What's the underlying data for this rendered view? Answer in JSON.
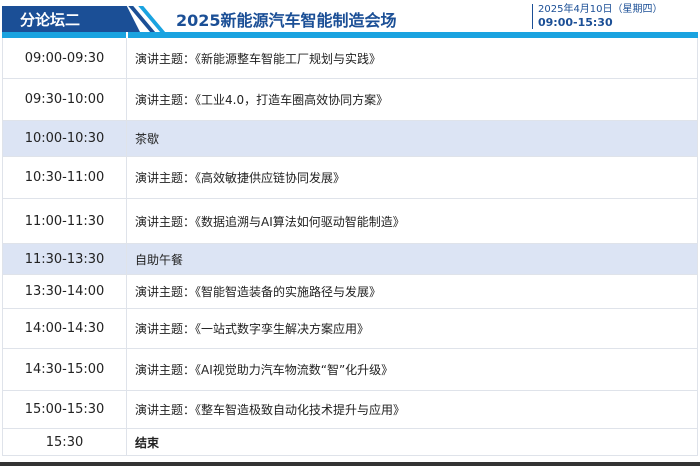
{
  "header": {
    "forum": "分论坛二",
    "title": "2025新能源汽车智能制造会场",
    "date": "2025年4月10日（星期四）",
    "time": "09:00-15:30",
    "colors": {
      "primary": "#1b4f96",
      "accent": "#1aa3e0",
      "highlight": "#dce4f4"
    }
  },
  "rows": [
    {
      "time": "09:00-09:30",
      "content": "演讲主题：《新能源整车智能工厂规划与实践》"
    },
    {
      "time": "09:30-10:00",
      "content": "演讲主题：《工业4.0，打造车圈高效协同方案》"
    },
    {
      "time": "10:00-10:30",
      "content": "茶歇"
    },
    {
      "time": "10:30-11:00",
      "content": "演讲主题：《高效敏捷供应链协同发展》"
    },
    {
      "time": "11:00-11:30",
      "content": "演讲主题：《数据追溯与AI算法如何驱动智能制造》"
    },
    {
      "time": "11:30-13:30",
      "content": "自助午餐"
    },
    {
      "time": "13:30-14:00",
      "content": "演讲主题：《智能智造装备的实施路径与发展》"
    },
    {
      "time": "14:00-14:30",
      "content": "演讲主题：《一站式数字孪生解决方案应用》"
    },
    {
      "time": "14:30-15:00",
      "content": "演讲主题：《AI视觉助力汽车物流数“智”化升级》"
    },
    {
      "time": "15:00-15:30",
      "content": "演讲主题：《整车智造极致自动化技术提升与应用》"
    },
    {
      "time": "15:30",
      "content": "结束"
    }
  ]
}
